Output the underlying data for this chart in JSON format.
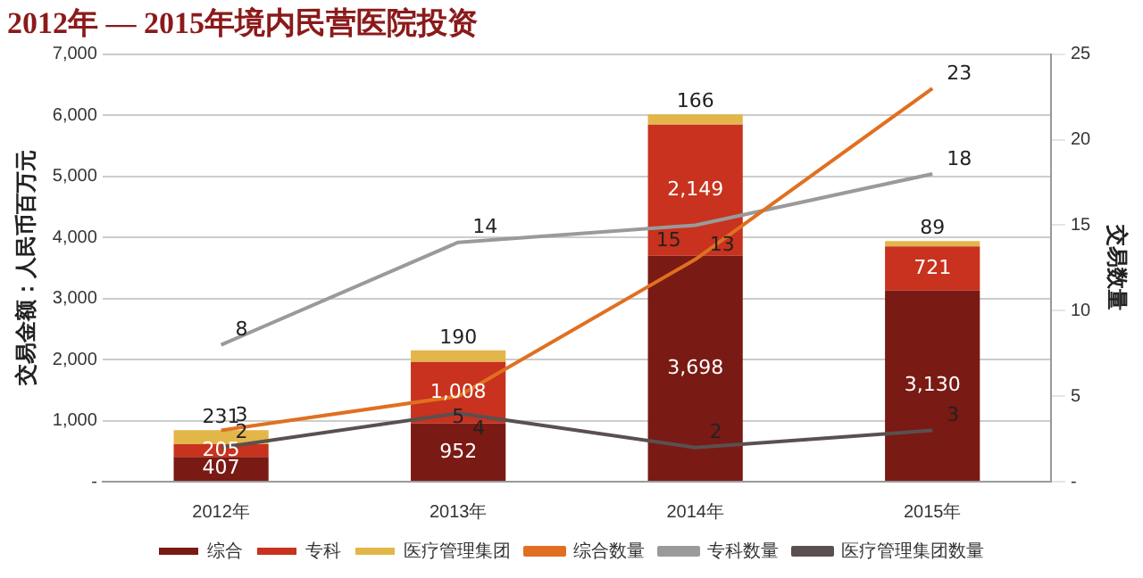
{
  "chart_data": {
    "type": "bar",
    "title": "2012年 — 2015年境内民营医院投资",
    "categories": [
      "2012年",
      "2013年",
      "2014年",
      "2015年"
    ],
    "ylabel": "交易金额：人民币百万元",
    "y2label": "交易数量",
    "stacked": true,
    "series": [
      {
        "name": "综合",
        "color": "#7a1a14",
        "values": [
          407,
          952,
          3698,
          3130
        ],
        "value_labels": [
          "407",
          "952",
          "3,698",
          "3,130"
        ]
      },
      {
        "name": "专科",
        "color": "#c8321e",
        "values": [
          205,
          1008,
          2149,
          721
        ],
        "value_labels": [
          "205",
          "1,008",
          "2,149",
          "721"
        ]
      },
      {
        "name": "医疗管理集团",
        "color": "#e3b64a",
        "values": [
          231,
          190,
          166,
          89
        ],
        "value_labels": [
          "231",
          "190",
          "166",
          "89"
        ]
      },
      {
        "name": "综合数量",
        "type": "line",
        "axis": "y2",
        "color": "#e07020",
        "values": [
          3,
          5,
          13,
          23
        ],
        "value_labels": [
          "3",
          "5",
          "13",
          "23"
        ]
      },
      {
        "name": "专科数量",
        "type": "line",
        "axis": "y2",
        "color": "#9a9a9a",
        "values": [
          8,
          14,
          15,
          18
        ],
        "value_labels": [
          "8",
          "14",
          "15",
          "18"
        ]
      },
      {
        "name": "医疗管理集团数量",
        "type": "line",
        "axis": "y2",
        "color": "#5a5050",
        "values": [
          2,
          4,
          2,
          3
        ],
        "value_labels": [
          "2",
          "4",
          "2",
          "3"
        ]
      }
    ],
    "ylim": [
      0,
      7000
    ],
    "yticks": [
      {
        "value": 0,
        "label": "-"
      },
      {
        "value": 1000,
        "label": "1,000"
      },
      {
        "value": 2000,
        "label": "2,000"
      },
      {
        "value": 3000,
        "label": "3,000"
      },
      {
        "value": 4000,
        "label": "4,000"
      },
      {
        "value": 5000,
        "label": "5,000"
      },
      {
        "value": 6000,
        "label": "6,000"
      },
      {
        "value": 7000,
        "label": "7,000"
      }
    ],
    "y2lim": [
      0,
      25
    ],
    "y2ticks": [
      {
        "value": 0,
        "label": "-"
      },
      5,
      10,
      15,
      20,
      25
    ],
    "grid": "y",
    "legend": "bottom",
    "marker": "none",
    "line_style": "solid"
  }
}
